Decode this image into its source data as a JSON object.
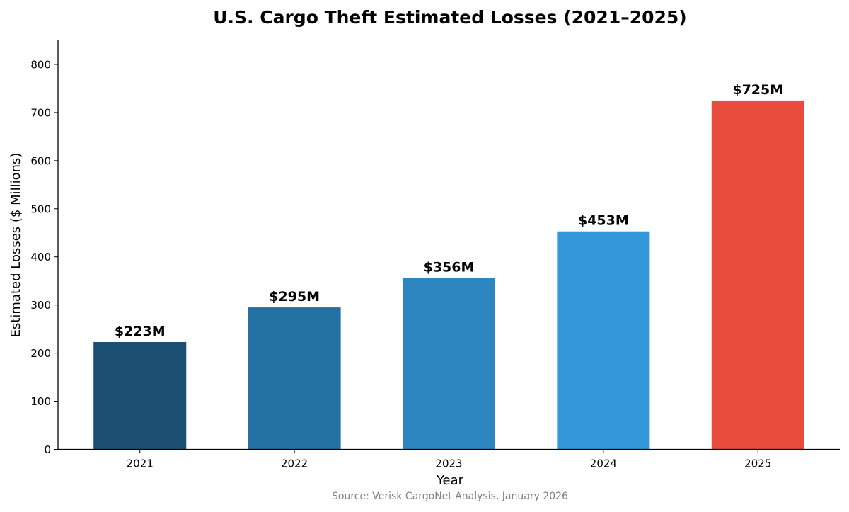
{
  "chart_data": {
    "type": "bar",
    "title": "U.S. Cargo Theft Estimated Losses (2021–2025)",
    "xlabel": "Year",
    "ylabel": "Estimated Losses ($ Millions)",
    "categories": [
      "2021",
      "2022",
      "2023",
      "2024",
      "2025"
    ],
    "values": [
      223,
      295,
      356,
      453,
      725
    ],
    "data_labels": [
      "$223M",
      "$295M",
      "$356M",
      "$453M",
      "$725M"
    ],
    "colors": [
      "#1b4f72",
      "#2471a3",
      "#2e86c1",
      "#3498db",
      "#e74c3c"
    ],
    "ylim": [
      0,
      850
    ],
    "yticks": [
      "0",
      "100",
      "200",
      "300",
      "400",
      "500",
      "600",
      "700",
      "800"
    ],
    "grid": false,
    "source": "Source: Verisk CargoNet Analysis, January 2026"
  }
}
